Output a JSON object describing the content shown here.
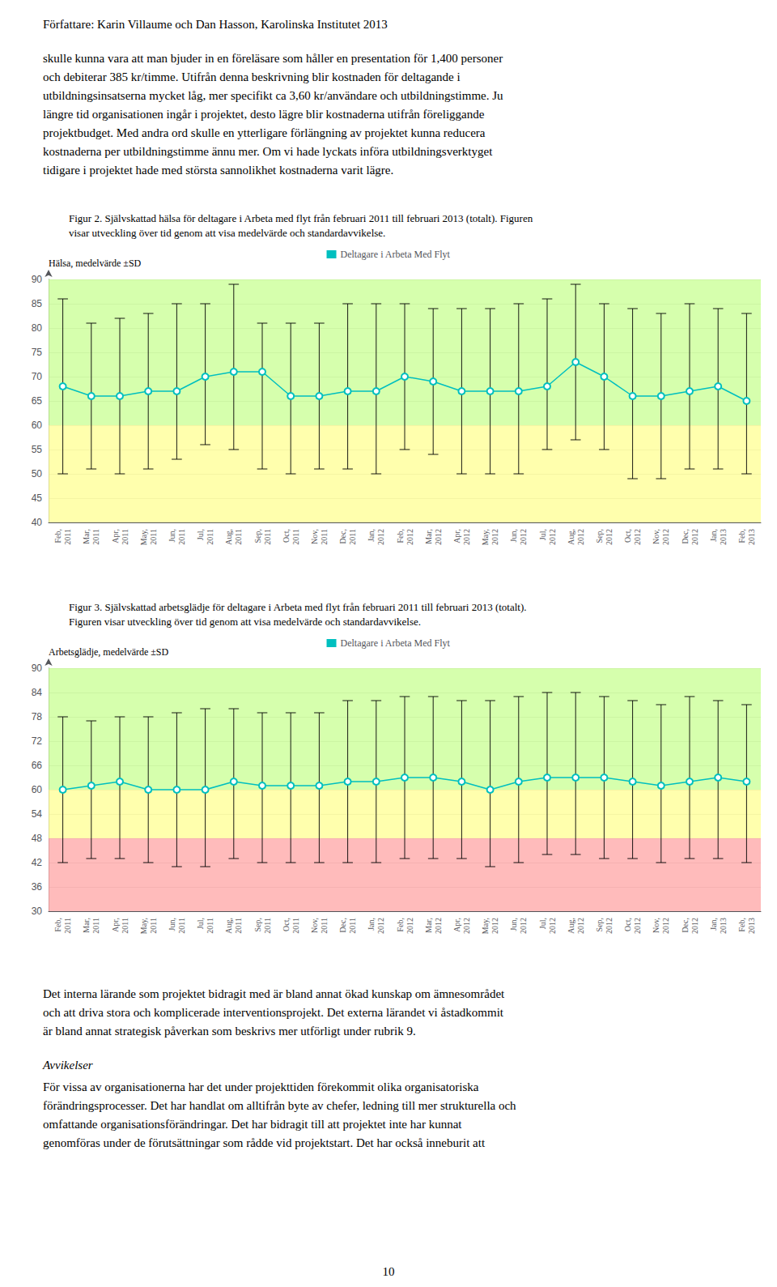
{
  "chart_data": [
    {
      "type": "line",
      "title": "Figur 2. Självskattad hälsa för deltagare i Arbeta med flyt från februari 2011 till februari 2013 (totalt). Figuren\nvisar utveckling över tid genom att visa medelvärde och standardavvikelse.",
      "ylabel": "Hälsa, medelvärde ±SD",
      "annotations": [
        "Författare: Karin Villaume och Dan Hasson, Karolinska Institutet 2013",
        "skulle kunna vara att man bjuder in en föreläsare som håller en presentation för 1,400 personer\noch debiterar 385 kr/timme. Utifrån denna beskrivning blir kostnaden för deltagande i\nutbildningsinsatserna mycket låg, mer specifikt ca 3,60 kr/användare och utbildningstimme. Ju\nlängre tid organisationen ingår i projektet, desto lägre blir kostnaderna utifrån föreliggande\nprojektbudget. Med andra ord skulle en ytterligare förlängning av projektet kunna reducera\nkostnaderna per utbildningstimme ännu mer. Om vi hade lyckats införa utbildningsverktyget\ntidigare i projektet hade med största sannolikhet kostnaderna varit lägre."
      ],
      "categories": [
        "Feb,\n2011",
        "Mar,\n2011",
        "Apr,\n2011",
        "May,\n2011",
        "Jun,\n2011",
        "Jul,\n2011",
        "Aug,\n2011",
        "Sep,\n2011",
        "Oct,\n2011",
        "Nov,\n2011",
        "Dec,\n2011",
        "Jan,\n2012",
        "Feb,\n2012",
        "Mar,\n2012",
        "Apr,\n2012",
        "May,\n2012",
        "Jun,\n2012",
        "Jul,\n2012",
        "Aug,\n2012",
        "Sep,\n2012",
        "Oct,\n2012",
        "Nov,\n2012",
        "Dec,\n2012",
        "Jan,\n2013",
        "Feb,\n2013"
      ],
      "series": [
        {
          "name": "Deltagare i Arbeta Med Flyt",
          "color": "#00BFBF",
          "marker": "circle",
          "values": [
            68,
            66,
            66,
            67,
            67,
            70,
            71,
            71,
            66,
            66,
            67,
            67,
            70,
            69,
            67,
            67,
            67,
            68,
            73,
            70,
            66,
            66,
            67,
            68,
            65
          ],
          "sd_upper": [
            86,
            81,
            82,
            83,
            85,
            85,
            89,
            81,
            81,
            81,
            85,
            85,
            85,
            84,
            84,
            84,
            85,
            86,
            89,
            85,
            84,
            83,
            85,
            84,
            83
          ],
          "sd_lower": [
            50,
            51,
            50,
            51,
            53,
            56,
            55,
            51,
            50,
            51,
            51,
            50,
            55,
            54,
            50,
            50,
            50,
            55,
            57,
            55,
            49,
            49,
            51,
            51,
            50
          ]
        }
      ],
      "ylim": [
        40,
        90
      ],
      "yticks": [
        40,
        45,
        50,
        55,
        60,
        65,
        70,
        75,
        80,
        85,
        90
      ],
      "grid": true,
      "legend": "top",
      "bands": [
        {
          "from": 60,
          "to": 90,
          "color": "#CCFF99"
        },
        {
          "from": 50,
          "to": 60,
          "color": "#FFFF99"
        },
        {
          "from": 40,
          "to": 50,
          "color": "#FFFF99"
        }
      ]
    },
    {
      "type": "line",
      "title": "Figur 3. Självskattad arbetsglädje för deltagare i Arbeta med flyt från februari 2011 till februari 2013 (totalt).\nFiguren visar utveckling över tid genom att visa medelvärde och standardavvikelse.",
      "ylabel": "Arbetsglädje, medelvärde ±SD",
      "annotations": [
        "Det interna lärande som projektet bidragit med är bland annat ökad kunskap om ämnesområdet\noch att driva stora och komplicerade interventionsprojekt. Det externa lärandet vi åstadkommit\när bland annat strategisk påverkan som beskrivs mer utförligt under rubrik 9.",
        "Avvikelser",
        "För vissa av organisationerna har det under projekttiden förekommit olika organisatoriska\nförändringsprocesser. Det har handlat om alltifrån byte av chefer, ledning till mer strukturella och\nomfattande organisationsförändringar. Det har bidragit till att projektet inte har kunnat\ngenomföras under de förutsättningar som rådde vid projektstart. Det har också inneburit att",
        "10"
      ],
      "categories": [
        "Feb,\n2011",
        "Mar,\n2011",
        "Apr,\n2011",
        "May,\n2011",
        "Jun,\n2011",
        "Jul,\n2011",
        "Aug,\n2011",
        "Sep,\n2011",
        "Oct,\n2011",
        "Nov,\n2011",
        "Dec,\n2011",
        "Jan,\n2012",
        "Feb,\n2012",
        "Mar,\n2012",
        "Apr,\n2012",
        "May,\n2012",
        "Jun,\n2012",
        "Jul,\n2012",
        "Aug,\n2012",
        "Sep,\n2012",
        "Oct,\n2012",
        "Nov,\n2012",
        "Dec,\n2012",
        "Jan,\n2013",
        "Feb,\n2013"
      ],
      "series": [
        {
          "name": "Deltagare i Arbeta Med Flyt",
          "color": "#00BFBF",
          "marker": "circle",
          "values": [
            60,
            61,
            62,
            60,
            60,
            60,
            62,
            61,
            61,
            61,
            62,
            62,
            63,
            63,
            62,
            60,
            62,
            63,
            63,
            63,
            62,
            61,
            62,
            63,
            62
          ],
          "sd_upper": [
            78,
            77,
            78,
            78,
            79,
            80,
            80,
            79,
            79,
            79,
            82,
            82,
            83,
            83,
            82,
            82,
            83,
            84,
            84,
            83,
            82,
            81,
            83,
            82,
            81
          ],
          "sd_lower": [
            42,
            43,
            43,
            42,
            41,
            41,
            43,
            42,
            42,
            42,
            42,
            42,
            43,
            43,
            43,
            41,
            42,
            44,
            44,
            43,
            43,
            42,
            43,
            43,
            42
          ]
        }
      ],
      "ylim": [
        30,
        90
      ],
      "yticks": [
        30,
        36,
        42,
        48,
        54,
        60,
        66,
        72,
        78,
        84,
        90
      ],
      "grid": true,
      "legend": "top",
      "bands": [
        {
          "from": 60,
          "to": 90,
          "color": "#CCFF99"
        },
        {
          "from": 48,
          "to": 60,
          "color": "#FFFF99"
        },
        {
          "from": 30,
          "to": 48,
          "color": "#FFAAAA"
        }
      ]
    }
  ]
}
